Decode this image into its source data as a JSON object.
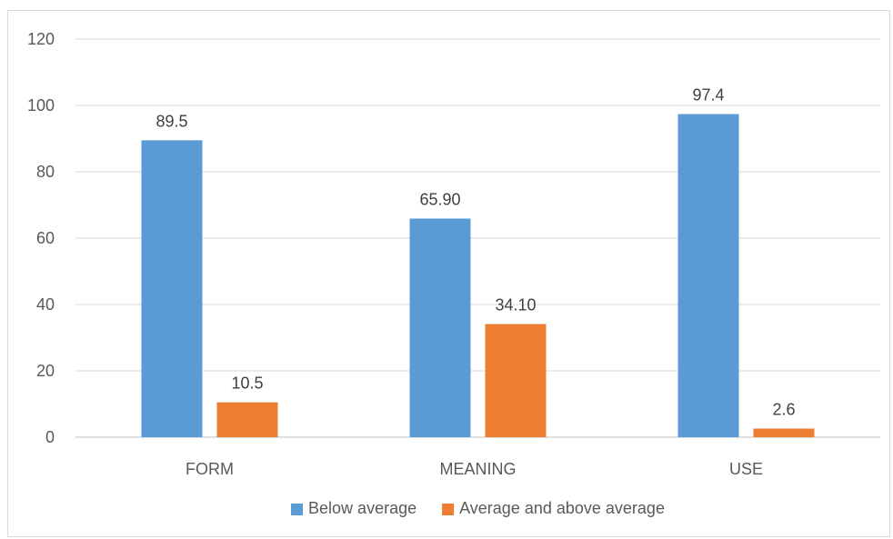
{
  "chart_data": {
    "type": "bar",
    "title": "",
    "xlabel": "",
    "ylabel": "",
    "categories": [
      "FORM",
      "MEANING",
      "USE"
    ],
    "series": [
      {
        "name": "Below average",
        "values": [
          89.5,
          65.9,
          97.4
        ],
        "labels": [
          "89.5",
          "65.90",
          "97.4"
        ],
        "color": "#5B9BD5"
      },
      {
        "name": "Average and above average",
        "values": [
          10.5,
          34.1,
          2.6
        ],
        "labels": [
          "10.5",
          "34.10",
          "2.6"
        ],
        "color": "#ED7D31"
      }
    ],
    "ylim": [
      0,
      120
    ],
    "yticks": [
      0,
      20,
      40,
      60,
      80,
      100,
      120
    ],
    "grid": true,
    "legend_position": "bottom",
    "gridline_color": "#d9d9d9",
    "axis_line_color": "#bfbfbf"
  }
}
